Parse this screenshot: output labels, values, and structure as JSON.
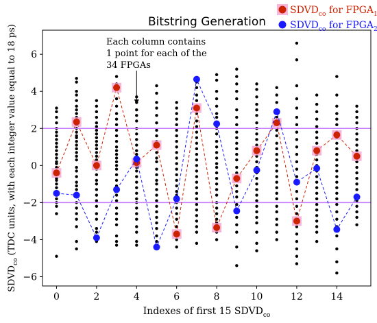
{
  "chart_data": {
    "type": "scatter",
    "title": "Bitstring Generation",
    "xlabel": "Indexes of first 15 SDVD",
    "xlabel_sub": "co",
    "ylabel": "SDVD",
    "ylabel_sub": "co",
    "ylabel_rest": " (TDC units, with each integer value equal to 18 ps)",
    "xlim": [
      -0.7,
      15.7
    ],
    "ylim": [
      -6.5,
      7.3
    ],
    "xticks": [
      0,
      2,
      4,
      6,
      8,
      10,
      12,
      14
    ],
    "yticks": [
      -6,
      -4,
      -2,
      0,
      2,
      4,
      6
    ],
    "grid": false,
    "legend_position": "top-right",
    "thresholds": {
      "values": [
        2,
        -2
      ],
      "color": "#c77dff"
    },
    "annotation": {
      "lines": [
        "Each column contains",
        "1 point for each of the",
        "34 FPGAs"
      ],
      "arrow_target": {
        "x": 4,
        "y": 3.3
      }
    },
    "background_points": [
      {
        "x": 0,
        "y": [
          3.1,
          2.9,
          2.6,
          2.3,
          2.0,
          1.8,
          1.6,
          1.4,
          1.2,
          1.0,
          0.8,
          0.6,
          0.4,
          0.2,
          0.1,
          -0.1,
          -0.3,
          -0.5,
          -0.7,
          -0.8,
          -1.0,
          -1.2,
          -1.4,
          -1.6,
          -1.8,
          -2.0,
          -2.2,
          -2.6,
          -4.9
        ]
      },
      {
        "x": 1,
        "y": [
          4.7,
          4.5,
          4.0,
          3.8,
          3.5,
          3.2,
          3.0,
          2.8,
          2.6,
          2.2,
          2.0,
          1.8,
          1.6,
          1.5,
          1.3,
          1.1,
          0.9,
          0.7,
          0.5,
          0.3,
          -0.1,
          -0.3,
          -0.6,
          -0.9,
          -1.1,
          -1.3,
          -1.7,
          -2.0,
          -2.3,
          -2.6,
          -2.9,
          -3.3,
          -4.1,
          -4.5
        ]
      },
      {
        "x": 2,
        "y": [
          3.5,
          3.2,
          2.9,
          2.6,
          2.3,
          2.1,
          1.9,
          1.7,
          1.5,
          1.3,
          1.1,
          0.9,
          0.7,
          0.5,
          0.3,
          0.1,
          -0.2,
          -0.5,
          -0.8,
          -1.0,
          -1.3,
          -1.6,
          -1.9,
          -2.2,
          -2.6,
          -2.9,
          -3.4,
          -3.6,
          -4.1
        ]
      },
      {
        "x": 3,
        "y": [
          4.8,
          4.4,
          3.6,
          3.2,
          2.8,
          2.5,
          2.2,
          1.9,
          1.6,
          1.3,
          1.0,
          0.8,
          0.6,
          0.4,
          0.2,
          0.0,
          -0.2,
          -0.5,
          -0.8,
          -1.1,
          -1.3,
          -1.6,
          -1.9,
          -2.3,
          -2.6,
          -2.9,
          -3.2,
          -3.8,
          -4.1,
          -4.3
        ]
      },
      {
        "x": 4,
        "y": [
          3.7,
          3.4,
          3.0,
          2.7,
          2.4,
          2.0,
          1.7,
          1.4,
          1.1,
          0.8,
          0.6,
          0.4,
          0.2,
          -0.1,
          -0.3,
          -0.6,
          -0.9,
          -1.2,
          -1.5,
          -1.8,
          -2.0,
          -2.3,
          -2.6,
          -2.9,
          -3.3,
          -3.6,
          -4.1,
          -4.3
        ]
      },
      {
        "x": 5,
        "y": [
          4.3,
          3.9,
          3.4,
          3.1,
          2.7,
          2.3,
          1.9,
          1.6,
          1.3,
          1.0,
          0.7,
          0.4,
          0.2,
          -0.2,
          -0.5,
          -0.8,
          -1.0,
          -1.3,
          -1.6,
          -1.9,
          -2.2,
          -2.5,
          -2.8,
          -3.1,
          -3.4,
          -3.8,
          -4.1,
          -4.4
        ]
      },
      {
        "x": 6,
        "y": [
          3.4,
          3.1,
          2.8,
          2.5,
          2.2,
          1.9,
          1.6,
          1.3,
          1.0,
          0.7,
          0.4,
          0.1,
          -0.2,
          -0.5,
          -0.8,
          -1.1,
          -1.4,
          -1.6,
          -2.0,
          -2.3,
          -2.6,
          -2.9,
          -3.3,
          -3.6,
          -4.0,
          -4.4
        ]
      },
      {
        "x": 7,
        "y": [
          4.5,
          4.2,
          3.8,
          3.5,
          3.2,
          2.8,
          2.4,
          2.1,
          1.8,
          1.5,
          1.2,
          0.9,
          0.6,
          0.3,
          0.0,
          -0.3,
          -0.6,
          -0.9,
          -1.2,
          -1.5,
          -1.8,
          -2.1,
          -2.4,
          -2.7,
          -3.0,
          -3.3,
          -3.6,
          -4.2
        ]
      },
      {
        "x": 8,
        "y": [
          4.9,
          4.6,
          4.0,
          3.6,
          3.2,
          2.8,
          2.6,
          2.0,
          1.7,
          1.3,
          1.0,
          0.7,
          0.4,
          0.1,
          -0.1,
          -0.4,
          -0.7,
          -1.0,
          -1.3,
          -1.6,
          -2.0,
          -2.3,
          -2.6,
          -2.9,
          -3.1,
          -3.6,
          -4.0
        ]
      },
      {
        "x": 9,
        "y": [
          5.2,
          4.8,
          4.4,
          4.0,
          3.6,
          3.0,
          2.6,
          2.2,
          1.8,
          1.5,
          1.2,
          0.9,
          0.6,
          0.3,
          -0.1,
          -0.4,
          -0.8,
          -1.1,
          -1.4,
          -1.7,
          -2.1,
          -2.4,
          -2.8,
          -3.2,
          -3.6,
          -4.4,
          -5.4
        ]
      },
      {
        "x": 10,
        "y": [
          4.4,
          4.1,
          3.7,
          3.3,
          3.0,
          2.7,
          2.3,
          2.0,
          1.7,
          1.4,
          1.1,
          0.8,
          0.5,
          0.2,
          -0.1,
          -0.4,
          -0.7,
          -1.0,
          -1.3,
          -1.6,
          -1.9,
          -2.2,
          -2.5,
          -2.8,
          -3.1,
          -3.6,
          -4.2,
          -4.6
        ]
      },
      {
        "x": 11,
        "y": [
          4.2,
          3.8,
          3.4,
          3.0,
          2.6,
          2.2,
          1.9,
          1.6,
          1.2,
          0.9,
          0.6,
          0.3,
          0.0,
          -0.3,
          -0.6,
          -0.9,
          -1.2,
          -1.5,
          -1.8,
          -2.2,
          -2.5,
          -2.9,
          -3.2,
          -3.6,
          -4.0
        ]
      },
      {
        "x": 12,
        "y": [
          6.6,
          5.7,
          4.3,
          3.6,
          3.1,
          2.6,
          2.2,
          1.8,
          1.4,
          1.0,
          0.6,
          0.2,
          -0.2,
          -0.6,
          -1.0,
          -1.4,
          -1.8,
          -2.2,
          -2.6,
          -3.0,
          -3.3,
          -3.7,
          -4.1,
          -4.5,
          -4.9,
          -5.3
        ]
      },
      {
        "x": 13,
        "y": [
          3.8,
          3.3,
          2.9,
          2.5,
          2.1,
          1.8,
          1.5,
          1.2,
          0.9,
          0.6,
          0.3,
          0.0,
          -0.3,
          -0.6,
          -0.9,
          -1.2,
          -1.5,
          -1.8,
          -2.1,
          -2.4,
          -2.7,
          -3.0,
          -3.3,
          -3.6,
          -4.1
        ]
      },
      {
        "x": 14,
        "y": [
          4.8,
          3.8,
          3.2,
          2.8,
          2.5,
          2.2,
          1.8,
          1.5,
          1.2,
          0.9,
          0.6,
          0.3,
          0.0,
          -0.3,
          -0.6,
          -0.9,
          -1.2,
          -1.5,
          -1.8,
          -2.1,
          -2.5,
          -2.9,
          -3.3,
          -3.8,
          -4.5,
          -5.2,
          -5.8
        ]
      },
      {
        "x": 15,
        "y": [
          3.2,
          2.9,
          2.6,
          2.3,
          2.0,
          1.7,
          1.4,
          1.1,
          0.8,
          0.5,
          0.2,
          -0.1,
          -0.4,
          -0.7,
          -1.0,
          -1.3,
          -1.6,
          -1.9,
          -2.2,
          -2.5,
          -2.8,
          -3.2
        ]
      }
    ],
    "series": [
      {
        "name": "SDVD",
        "name_sub": "co",
        "name_rest": " for FPGA",
        "name_sub2": "1",
        "color": "#cc2200",
        "halo": "#f5a3d0",
        "x": [
          0,
          1,
          2,
          3,
          4,
          5,
          6,
          7,
          8,
          9,
          10,
          11,
          12,
          13,
          14,
          15
        ],
        "y": [
          -0.4,
          2.35,
          0.0,
          4.2,
          0.15,
          1.1,
          -3.7,
          3.1,
          -3.35,
          -0.7,
          0.8,
          2.3,
          -3.0,
          0.8,
          1.65,
          0.5
        ]
      },
      {
        "name": "SDVD",
        "name_sub": "co",
        "name_rest": " for FPGA",
        "name_sub2": "2",
        "color": "#1a1aff",
        "halo": "",
        "x": [
          0,
          1,
          2,
          3,
          4,
          5,
          6,
          7,
          8,
          9,
          10,
          11,
          12,
          13,
          14,
          15
        ],
        "y": [
          -1.5,
          -1.6,
          -3.9,
          -1.3,
          0.35,
          -4.4,
          -1.8,
          4.65,
          2.25,
          -2.45,
          -0.25,
          2.9,
          -0.9,
          -0.15,
          -3.45,
          -1.7
        ]
      }
    ]
  }
}
